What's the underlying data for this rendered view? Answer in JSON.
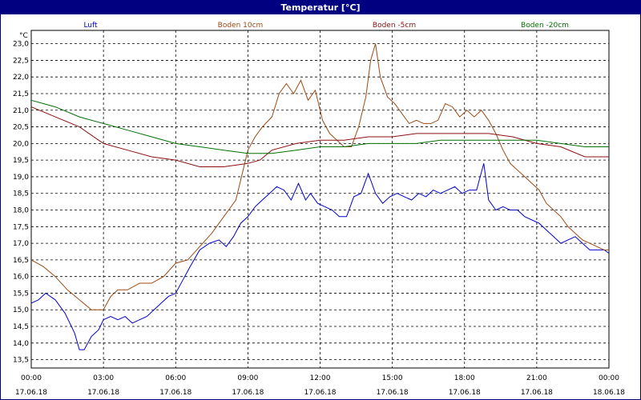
{
  "window": {
    "title": "Temperatur [°C]"
  },
  "chart_data": {
    "type": "line",
    "title": "Temperatur [°C]",
    "ylabel": "°C",
    "xlabel": "",
    "ylim": [
      13.25,
      23.4
    ],
    "xlim": [
      0,
      24
    ],
    "grid": true,
    "legend_position": "top",
    "y_ticks": [
      "13,5",
      "14,0",
      "14,5",
      "15,0",
      "15,5",
      "16,0",
      "16,5",
      "17,0",
      "17,5",
      "18,0",
      "18,5",
      "19,0",
      "19,5",
      "20,0",
      "20,5",
      "21,0",
      "21,5",
      "22,0",
      "22,5",
      "23,0"
    ],
    "x_ticks": [
      {
        "time": "00:00",
        "date": "17.06.18"
      },
      {
        "time": "03:00",
        "date": "17.06.18"
      },
      {
        "time": "06:00",
        "date": "17.06.18"
      },
      {
        "time": "09:00",
        "date": "17.06.18"
      },
      {
        "time": "12:00",
        "date": "17.06.18"
      },
      {
        "time": "15:00",
        "date": "17.06.18"
      },
      {
        "time": "18:00",
        "date": "17.06.18"
      },
      {
        "time": "21:00",
        "date": "17.06.18"
      },
      {
        "time": "00:00",
        "date": "18.06.18"
      }
    ],
    "series": [
      {
        "name": "Luft",
        "color": "#0000cc",
        "x": [
          0,
          0.3,
          0.6,
          1.0,
          1.4,
          1.8,
          2.0,
          2.2,
          2.5,
          2.8,
          3.0,
          3.3,
          3.6,
          3.9,
          4.2,
          4.5,
          4.8,
          5.1,
          5.4,
          5.7,
          6.0,
          6.3,
          6.6,
          7.0,
          7.4,
          7.8,
          8.1,
          8.4,
          8.7,
          9.0,
          9.3,
          9.6,
          9.9,
          10.2,
          10.5,
          10.8,
          11.1,
          11.4,
          11.6,
          11.9,
          12.2,
          12.5,
          12.8,
          13.1,
          13.4,
          13.7,
          14.0,
          14.3,
          14.6,
          14.9,
          15.2,
          15.5,
          15.8,
          16.1,
          16.4,
          16.7,
          17.0,
          17.3,
          17.6,
          17.9,
          18.2,
          18.5,
          18.8,
          19.0,
          19.3,
          19.6,
          19.9,
          20.2,
          20.5,
          20.8,
          21.1,
          21.4,
          21.7,
          22.0,
          22.3,
          22.6,
          22.9,
          23.2,
          23.5,
          23.8,
          24.0
        ],
        "y": [
          15.2,
          15.3,
          15.5,
          15.3,
          14.9,
          14.3,
          13.8,
          13.8,
          14.2,
          14.4,
          14.7,
          14.8,
          14.7,
          14.8,
          14.6,
          14.7,
          14.8,
          15.0,
          15.2,
          15.4,
          15.5,
          15.9,
          16.3,
          16.8,
          17.0,
          17.1,
          16.9,
          17.2,
          17.6,
          17.8,
          18.1,
          18.3,
          18.5,
          18.7,
          18.6,
          18.3,
          18.8,
          18.3,
          18.5,
          18.2,
          18.1,
          18.0,
          17.8,
          17.8,
          18.4,
          18.5,
          19.1,
          18.5,
          18.2,
          18.4,
          18.5,
          18.4,
          18.3,
          18.5,
          18.4,
          18.6,
          18.5,
          18.6,
          18.7,
          18.5,
          18.6,
          18.6,
          19.4,
          18.3,
          18.0,
          18.1,
          18.0,
          18.0,
          17.8,
          17.7,
          17.6,
          17.4,
          17.2,
          17.0,
          17.1,
          17.2,
          17.0,
          16.8,
          16.8,
          16.8,
          16.7
        ]
      },
      {
        "name": "Boden 10cm",
        "color": "#9c4a14",
        "x": [
          0,
          0.5,
          1.0,
          1.5,
          2.0,
          2.5,
          3.0,
          3.3,
          3.6,
          4.0,
          4.5,
          5.0,
          5.5,
          6.0,
          6.5,
          7.0,
          7.5,
          8.0,
          8.5,
          9.0,
          9.3,
          9.6,
          10.0,
          10.3,
          10.6,
          10.9,
          11.2,
          11.5,
          11.8,
          12.1,
          12.4,
          12.7,
          13.0,
          13.3,
          13.6,
          13.9,
          14.1,
          14.3,
          14.5,
          14.8,
          15.1,
          15.4,
          15.7,
          16.0,
          16.3,
          16.6,
          16.9,
          17.2,
          17.5,
          17.8,
          18.1,
          18.4,
          18.7,
          19.0,
          19.3,
          19.6,
          19.9,
          20.2,
          20.5,
          20.8,
          21.1,
          21.4,
          21.7,
          22.0,
          22.3,
          22.6,
          22.9,
          23.2,
          23.5,
          23.8,
          24.0
        ],
        "y": [
          16.5,
          16.3,
          16.0,
          15.6,
          15.3,
          15.0,
          15.0,
          15.4,
          15.6,
          15.6,
          15.8,
          15.8,
          16.0,
          16.4,
          16.5,
          16.9,
          17.3,
          17.8,
          18.3,
          19.8,
          20.2,
          20.5,
          20.8,
          21.5,
          21.8,
          21.5,
          21.9,
          21.3,
          21.6,
          20.7,
          20.3,
          20.1,
          19.9,
          19.9,
          20.5,
          21.4,
          22.5,
          23.0,
          22.0,
          21.4,
          21.2,
          20.9,
          20.6,
          20.7,
          20.6,
          20.6,
          20.7,
          21.2,
          21.1,
          20.8,
          21.0,
          20.8,
          21.0,
          20.7,
          20.3,
          19.8,
          19.4,
          19.2,
          19.0,
          18.8,
          18.6,
          18.2,
          18.0,
          17.8,
          17.5,
          17.3,
          17.1,
          17.0,
          16.9,
          16.8,
          16.8
        ]
      },
      {
        "name": "Boden -5cm",
        "color": "#8b1010",
        "x": [
          0,
          1.0,
          2.0,
          3.0,
          4.0,
          5.0,
          6.0,
          7.0,
          8.0,
          9.0,
          9.5,
          10.0,
          11.0,
          12.0,
          13.0,
          14.0,
          15.0,
          16.0,
          17.0,
          18.0,
          19.0,
          20.0,
          21.0,
          22.0,
          23.0,
          24.0
        ],
        "y": [
          21.1,
          20.8,
          20.5,
          20.0,
          19.8,
          19.6,
          19.5,
          19.3,
          19.3,
          19.4,
          19.5,
          19.8,
          20.0,
          20.1,
          20.1,
          20.2,
          20.2,
          20.3,
          20.3,
          20.3,
          20.3,
          20.2,
          20.0,
          19.9,
          19.6,
          19.6
        ]
      },
      {
        "name": "Boden -20cm",
        "color": "#007000",
        "x": [
          0,
          1.0,
          2.0,
          3.0,
          4.0,
          5.0,
          6.0,
          7.0,
          8.0,
          9.0,
          10.0,
          11.0,
          12.0,
          13.0,
          14.0,
          15.0,
          16.0,
          17.0,
          18.0,
          19.0,
          20.0,
          21.0,
          22.0,
          23.0,
          24.0
        ],
        "y": [
          21.3,
          21.1,
          20.8,
          20.6,
          20.4,
          20.2,
          20.0,
          19.9,
          19.8,
          19.7,
          19.7,
          19.8,
          19.9,
          19.9,
          20.0,
          20.0,
          20.0,
          20.1,
          20.1,
          20.1,
          20.1,
          20.1,
          20.0,
          19.9,
          19.9
        ]
      }
    ]
  }
}
